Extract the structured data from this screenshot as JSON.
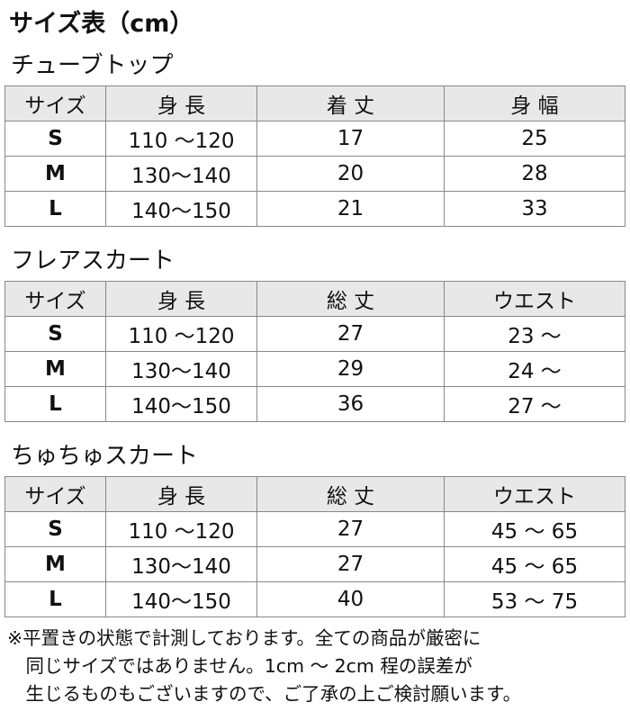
{
  "title": "サイズ表（cm）",
  "tables": [
    {
      "name": "チューブトップ",
      "headers": [
        "サイズ",
        "身 長",
        "着 丈",
        "身 幅"
      ],
      "rows": [
        [
          "S",
          "110 ～120",
          "17",
          "25"
        ],
        [
          "M",
          "130～140",
          "20",
          "28"
        ],
        [
          "L",
          "140～150",
          "21",
          "33"
        ]
      ]
    },
    {
      "name": "フレアスカート",
      "headers": [
        "サイズ",
        "身 長",
        "総 丈",
        "ウエスト"
      ],
      "rows": [
        [
          "S",
          "110 ～120",
          "27",
          "23 ～"
        ],
        [
          "M",
          "130～140",
          "29",
          "24 ～"
        ],
        [
          "L",
          "140～150",
          "36",
          "27 ～"
        ]
      ]
    },
    {
      "name": "ちゅちゅスカート",
      "headers": [
        "サイズ",
        "身 長",
        "総 丈",
        "ウエスト"
      ],
      "rows": [
        [
          "S",
          "110 ～120",
          "27",
          "45 ～ 65"
        ],
        [
          "M",
          "130～140",
          "27",
          "45 ～ 65"
        ],
        [
          "L",
          "140～150",
          "40",
          "53 ～ 75"
        ]
      ]
    }
  ],
  "note": [
    "※平置きの状態で計測しております。全ての商品が厳密に",
    "　同じサイズではありません。1cm ～ 2cm 程の誤差が",
    "　生じるものもございますので、ご了承の上ご検討願います。"
  ]
}
